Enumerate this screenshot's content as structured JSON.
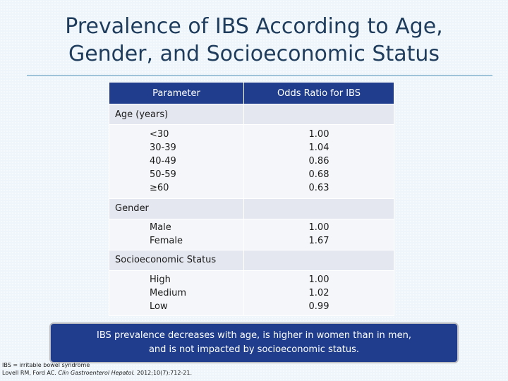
{
  "title": {
    "line1": "Prevalence of IBS According to Age,",
    "line2": "Gender, and Socioeconomic Status"
  },
  "table": {
    "headers": [
      "Parameter",
      "Odds Ratio for IBS"
    ],
    "sections": [
      {
        "label": "Age (years)",
        "rows": [
          "<30",
          "30-39",
          "40-49",
          "50-59",
          "≥60"
        ],
        "values": [
          "1.00",
          "1.04",
          "0.86",
          "0.68",
          "0.63"
        ]
      },
      {
        "label": "Gender",
        "rows": [
          "Male",
          "Female"
        ],
        "values": [
          "1.00",
          "1.67"
        ]
      },
      {
        "label": "Socioeconomic Status",
        "rows": [
          "High",
          "Medium",
          "Low"
        ],
        "values": [
          "1.00",
          "1.02",
          "0.99"
        ]
      }
    ]
  },
  "callout": {
    "line1": "IBS prevalence decreases with age, is higher in women than in men,",
    "line2": "and is not impacted by socioeconomic status."
  },
  "footnote": {
    "abbrev": "IBS = irritable bowel syndrome",
    "ref_authors": "Lovell RM, Ford AC. ",
    "ref_journal": "Clin Gastroenterol Hepatol.",
    "ref_rest": " 2012;10(7):712-21."
  },
  "colors": {
    "header_bg": "#1f3d8c",
    "title": "#1f3c5c",
    "section_bg": "#e4e7ef",
    "row_bg": "#f4f6f9"
  }
}
